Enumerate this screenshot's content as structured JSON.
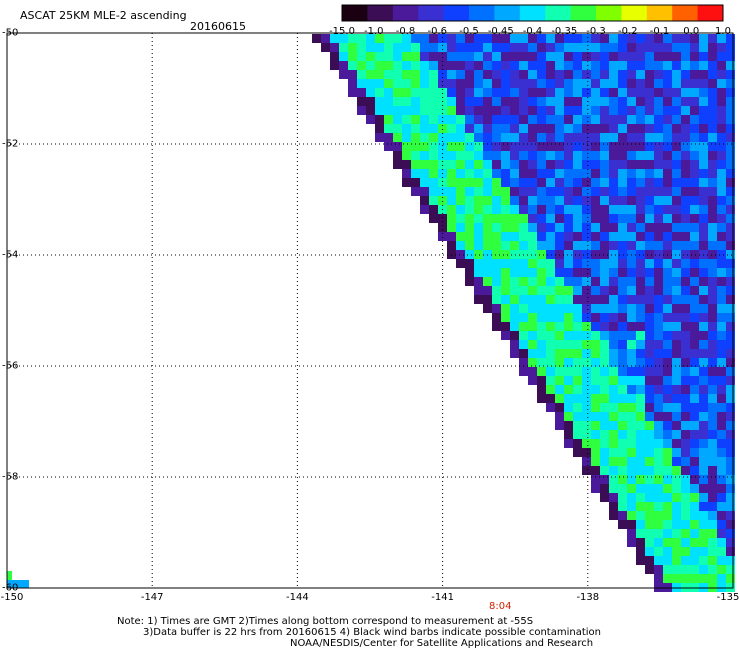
{
  "header": {
    "title": "ASCAT 25KM MLE-2 ascending",
    "date": "20160615"
  },
  "colorbar": {
    "labels": [
      "-15.0",
      "-1.0",
      "-0.8",
      "-0.6",
      "-0.5",
      "-0.45",
      "-0.4",
      "-0.35",
      "-0.3",
      "-0.2",
      "-0.1",
      "0.0",
      "1.0"
    ],
    "colors": [
      "#1a0010",
      "#3a0d55",
      "#4a1a9a",
      "#3a2fd0",
      "#1040ff",
      "#0070ff",
      "#00a8ff",
      "#00e0ff",
      "#10ffb0",
      "#30ff40",
      "#80ff00",
      "#e8ff00",
      "#ffc000",
      "#ff6000",
      "#ff1010"
    ]
  },
  "map": {
    "lat_labels": [
      "-50",
      "-52",
      "-54",
      "-56",
      "-58",
      "-60"
    ],
    "lat_values": [
      -50,
      -52,
      -54,
      -56,
      -58,
      -60
    ],
    "lon_labels": [
      "-150",
      "-147",
      "-144",
      "-141",
      "-138",
      "-135"
    ],
    "lon_values": [
      -150,
      -147,
      -144,
      -141,
      -138,
      -135
    ],
    "lat_range": [
      -60,
      -50
    ],
    "lon_range": [
      -150,
      -135
    ],
    "grid": "dotted",
    "time_marker": "8:04"
  },
  "notes": {
    "line1": "Note: 1) Times are GMT 2)Times along bottom correspond to measurement at -55S",
    "line2": "3)Data buffer is 22 hrs from 20160615 4) Black wind barbs indicate possible contamination",
    "line3": "NOAA/NESDIS/Center for Satellite Applications and Research"
  }
}
